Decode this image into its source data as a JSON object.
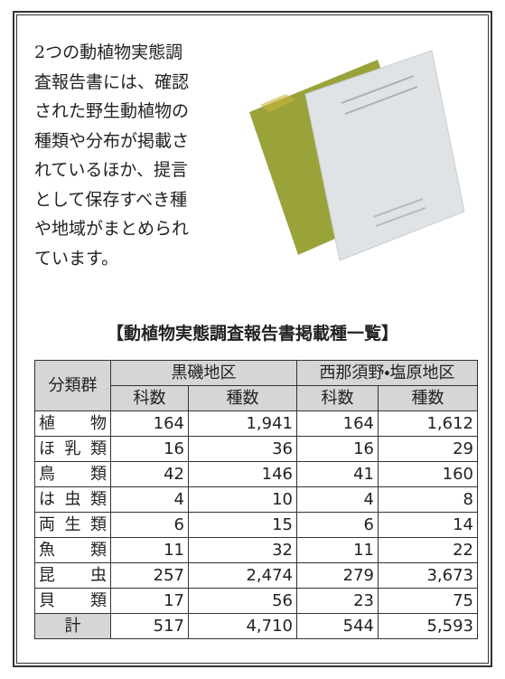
{
  "body": {
    "paragraph": [
      "2つの動植物実態調",
      "査報告書には、確認",
      "された野生動植物の",
      "種類や分布が掲載さ",
      "れているほか、提言",
      "として保存すべき種",
      "や地域がまとめられ",
      "ています。"
    ]
  },
  "table": {
    "title": "【動植物実態調査報告書掲載種一覧】",
    "header": {
      "group": "分類群",
      "areas": [
        "黒磯地区",
        "西那須野・塩原地区"
      ],
      "columns": [
        "科数",
        "種数",
        "科数",
        "種数"
      ]
    },
    "rows": [
      [
        "植物",
        "164",
        "1,941",
        "164",
        "1,612"
      ],
      [
        "ほ乳類",
        "16",
        "36",
        "16",
        "29"
      ],
      [
        "鳥類",
        "42",
        "146",
        "41",
        "160"
      ],
      [
        "は虫類",
        "4",
        "10",
        "4",
        "8"
      ],
      [
        "両生類",
        "6",
        "15",
        "6",
        "14"
      ],
      [
        "魚類",
        "11",
        "32",
        "11",
        "22"
      ],
      [
        "昆虫",
        "257",
        "2,474",
        "279",
        "3,673"
      ],
      [
        "貝類",
        "17",
        "56",
        "23",
        "75"
      ],
      [
        "計",
        "517",
        "4,710",
        "544",
        "5,593"
      ]
    ]
  }
}
